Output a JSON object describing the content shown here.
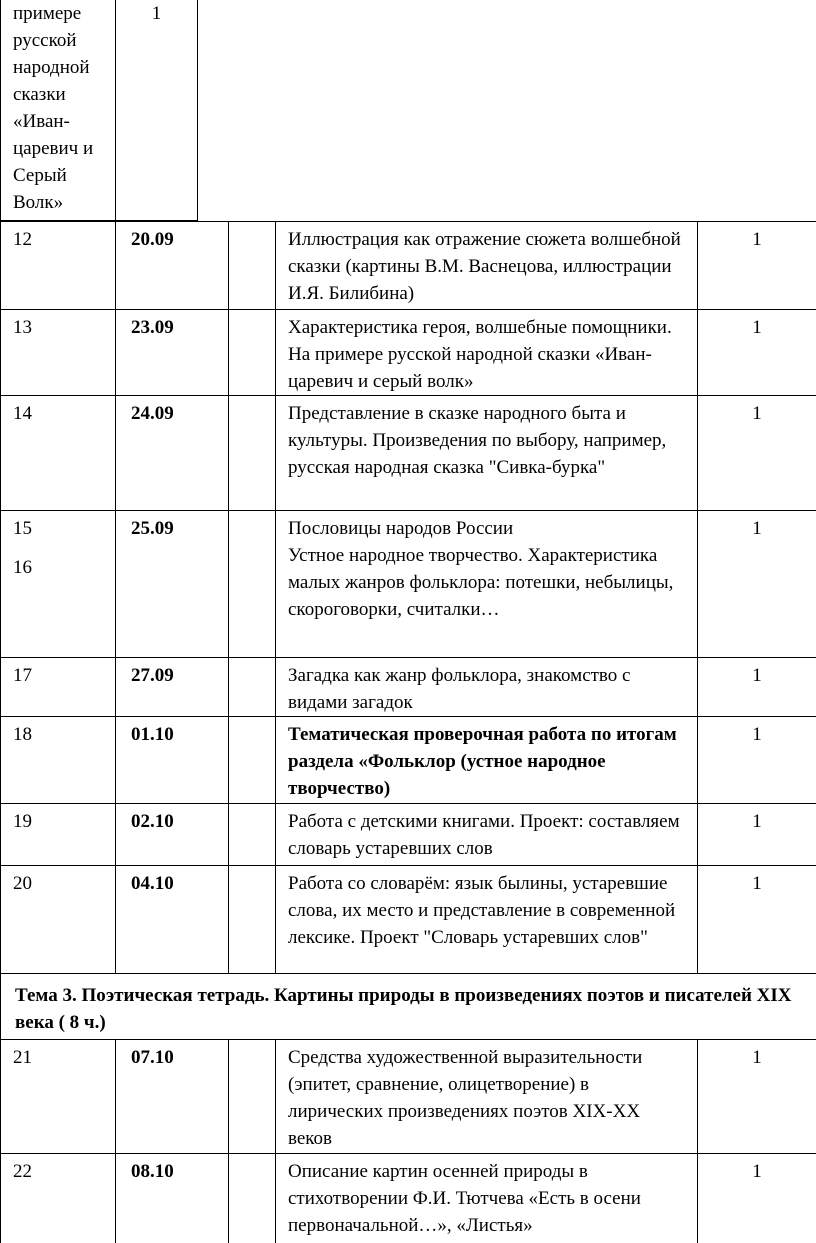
{
  "top_fragment": {
    "text": "примере русской народной сказки «Иван-царевич и Серый Волк»",
    "hours": "1"
  },
  "rows": [
    {
      "numbers": [
        "12"
      ],
      "date": "20.09",
      "topic": [
        "Иллюстрация как отражение сюжета волшебной сказки (картины В.М. Васнецова, иллюстрации И.Я. Билибина)"
      ],
      "hours": "1"
    },
    {
      "numbers": [
        "13"
      ],
      "date": "23.09",
      "topic": [
        "Характеристика героя, волшебные помощники. На примере русской народной сказки «Иван-царевич и серый волк»"
      ],
      "hours": "1"
    },
    {
      "numbers": [
        "14"
      ],
      "date": "24.09",
      "topic": [
        "Представление в сказке народного быта и культуры. Произведения по выбору, например, русская народная сказка \"Сивка-бурка\""
      ],
      "hours": "1"
    },
    {
      "numbers": [
        "15",
        "16"
      ],
      "date": "25.09",
      "topic": [
        "Пословицы народов России",
        "Устное народное творчество. Характеристика малых жанров фольклора: потешки, небылицы, скороговорки, считалки…"
      ],
      "hours": "1"
    },
    {
      "numbers": [
        "17"
      ],
      "date": "27.09",
      "topic": [
        "Загадка как жанр фольклора, знакомство с видами загадок"
      ],
      "hours": "1"
    },
    {
      "numbers": [
        "18"
      ],
      "date": "01.10",
      "topic": [
        "Тематическая проверочная работа по итогам раздела «Фольклор (устное народное творчество)"
      ],
      "hours": "1",
      "bold": true
    },
    {
      "numbers": [
        "19"
      ],
      "date": "02.10",
      "topic": [
        "Работа с детскими книгами. Проект: составляем словарь устаревших слов"
      ],
      "hours": "1"
    },
    {
      "numbers": [
        "20"
      ],
      "date": "04.10",
      "topic": [
        "Работа со словарём: язык былины, устаревшие слова, их место и представление в современной лексике. Проект \"Словарь устаревших слов\""
      ],
      "hours": "1"
    },
    {
      "theme": "Тема 3. Поэтическая тетрадь. Картины природы в произведениях поэтов и писателей XIX века ( 8 ч.)"
    },
    {
      "numbers": [
        "21"
      ],
      "date": "07.10",
      "topic": [
        "Средства художественной выразительности (эпитет, сравнение, олицетворение) в лирических произведениях поэтов XIX-XX веков"
      ],
      "hours": "1"
    },
    {
      "numbers": [
        "22"
      ],
      "date": "08.10",
      "topic": [
        "Описание картин осенней природы в стихотворении Ф.И. Тютчева «Есть в осени первоначальной…», «Листья»"
      ],
      "hours": "1"
    }
  ]
}
